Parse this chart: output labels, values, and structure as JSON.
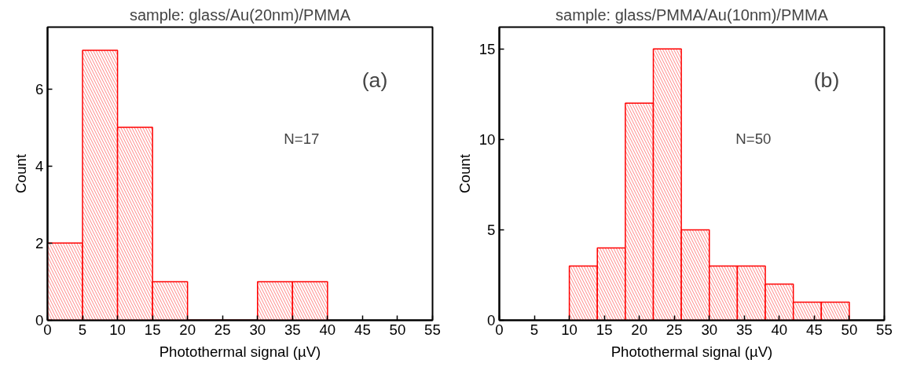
{
  "chart_data": [
    {
      "type": "histogram",
      "title": "sample: glass/Au(20nm)/PMMA",
      "xlabel": "Photothermal signal (µV)",
      "ylabel": "Count",
      "annotations": [
        "(a)",
        "N=17"
      ],
      "bins": [
        0,
        5,
        10,
        15,
        20,
        25,
        30,
        35,
        40
      ],
      "values": [
        2,
        7,
        5,
        1,
        0,
        0,
        1,
        1
      ],
      "color": "#ff0000",
      "xlim": [
        0,
        55
      ],
      "xticks": [
        0,
        5,
        10,
        15,
        20,
        25,
        30,
        35,
        40,
        45,
        50,
        55
      ],
      "ylim": [
        0,
        7.6
      ],
      "yticks": [
        0,
        2,
        4,
        6
      ],
      "grid": false
    },
    {
      "type": "histogram",
      "title": "sample: glass/PMMA/Au(10nm)/PMMA",
      "xlabel": "Photothermal signal (µV)",
      "ylabel": "Count",
      "annotations": [
        "(b)",
        "N=50"
      ],
      "bins": [
        10,
        14,
        18,
        22,
        26,
        30,
        34,
        38,
        42,
        46,
        50
      ],
      "values": [
        3,
        4,
        12,
        15,
        5,
        3,
        3,
        2,
        1,
        1
      ],
      "color": "#ff0000",
      "xlim": [
        0,
        55
      ],
      "xticks": [
        0,
        5,
        10,
        15,
        20,
        25,
        30,
        35,
        40,
        45,
        50,
        55
      ],
      "ylim": [
        0,
        16.2
      ],
      "yticks": [
        0,
        5,
        10,
        15
      ],
      "grid": false
    }
  ]
}
